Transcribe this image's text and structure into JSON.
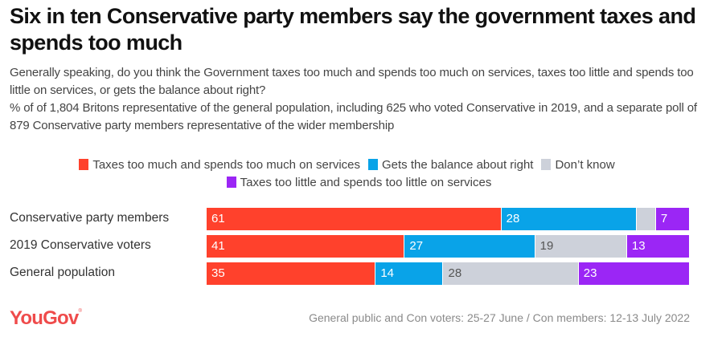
{
  "header": {
    "title": "Six in ten Conservative party members say the government taxes and spends too much",
    "question": "Generally speaking, do you think the Government taxes too much and spends too much on services, taxes too little and spends too little on services, or gets the balance about right?",
    "base": "% of of 1,804 Britons representative of the general population, including 625 who voted Conservative in 2019, and a separate poll of 879 Conservative party members representative of the wider membership"
  },
  "footer": {
    "logo": "YouGov",
    "logo_mark": "®",
    "note": "General public and Con voters: 25-27 June / Con members: 12-13 July 2022"
  },
  "chart_data": {
    "type": "bar",
    "orientation": "horizontal",
    "stacked": true,
    "title": "Six in ten Conservative party members say the government taxes and spends too much",
    "xlabel": "",
    "ylabel": "",
    "xlim": [
      0,
      100
    ],
    "grid": false,
    "legend_position": "top",
    "categories": [
      "Conservative party members",
      "2019 Conservative voters",
      "General population"
    ],
    "series": [
      {
        "name": "Taxes too much and spends too much on services",
        "color": "#ff412c",
        "label_color": "#ffffff",
        "values": [
          61,
          41,
          35
        ],
        "show_labels": [
          true,
          true,
          true
        ]
      },
      {
        "name": "Gets the balance about right",
        "color": "#09a3e8",
        "label_color": "#ffffff",
        "values": [
          28,
          27,
          14
        ],
        "show_labels": [
          true,
          true,
          true
        ]
      },
      {
        "name": "Don’t know",
        "color": "#cdd1da",
        "label_color": "#555555",
        "values": [
          4,
          19,
          28
        ],
        "show_labels": [
          false,
          true,
          true
        ]
      },
      {
        "name": "Taxes too little and spends too little on services",
        "color": "#9b26f5",
        "label_color": "#ffffff",
        "values": [
          7,
          13,
          23
        ],
        "show_labels": [
          true,
          true,
          true
        ]
      }
    ],
    "legend_rows": [
      [
        0,
        1,
        2
      ],
      [
        3
      ]
    ]
  }
}
